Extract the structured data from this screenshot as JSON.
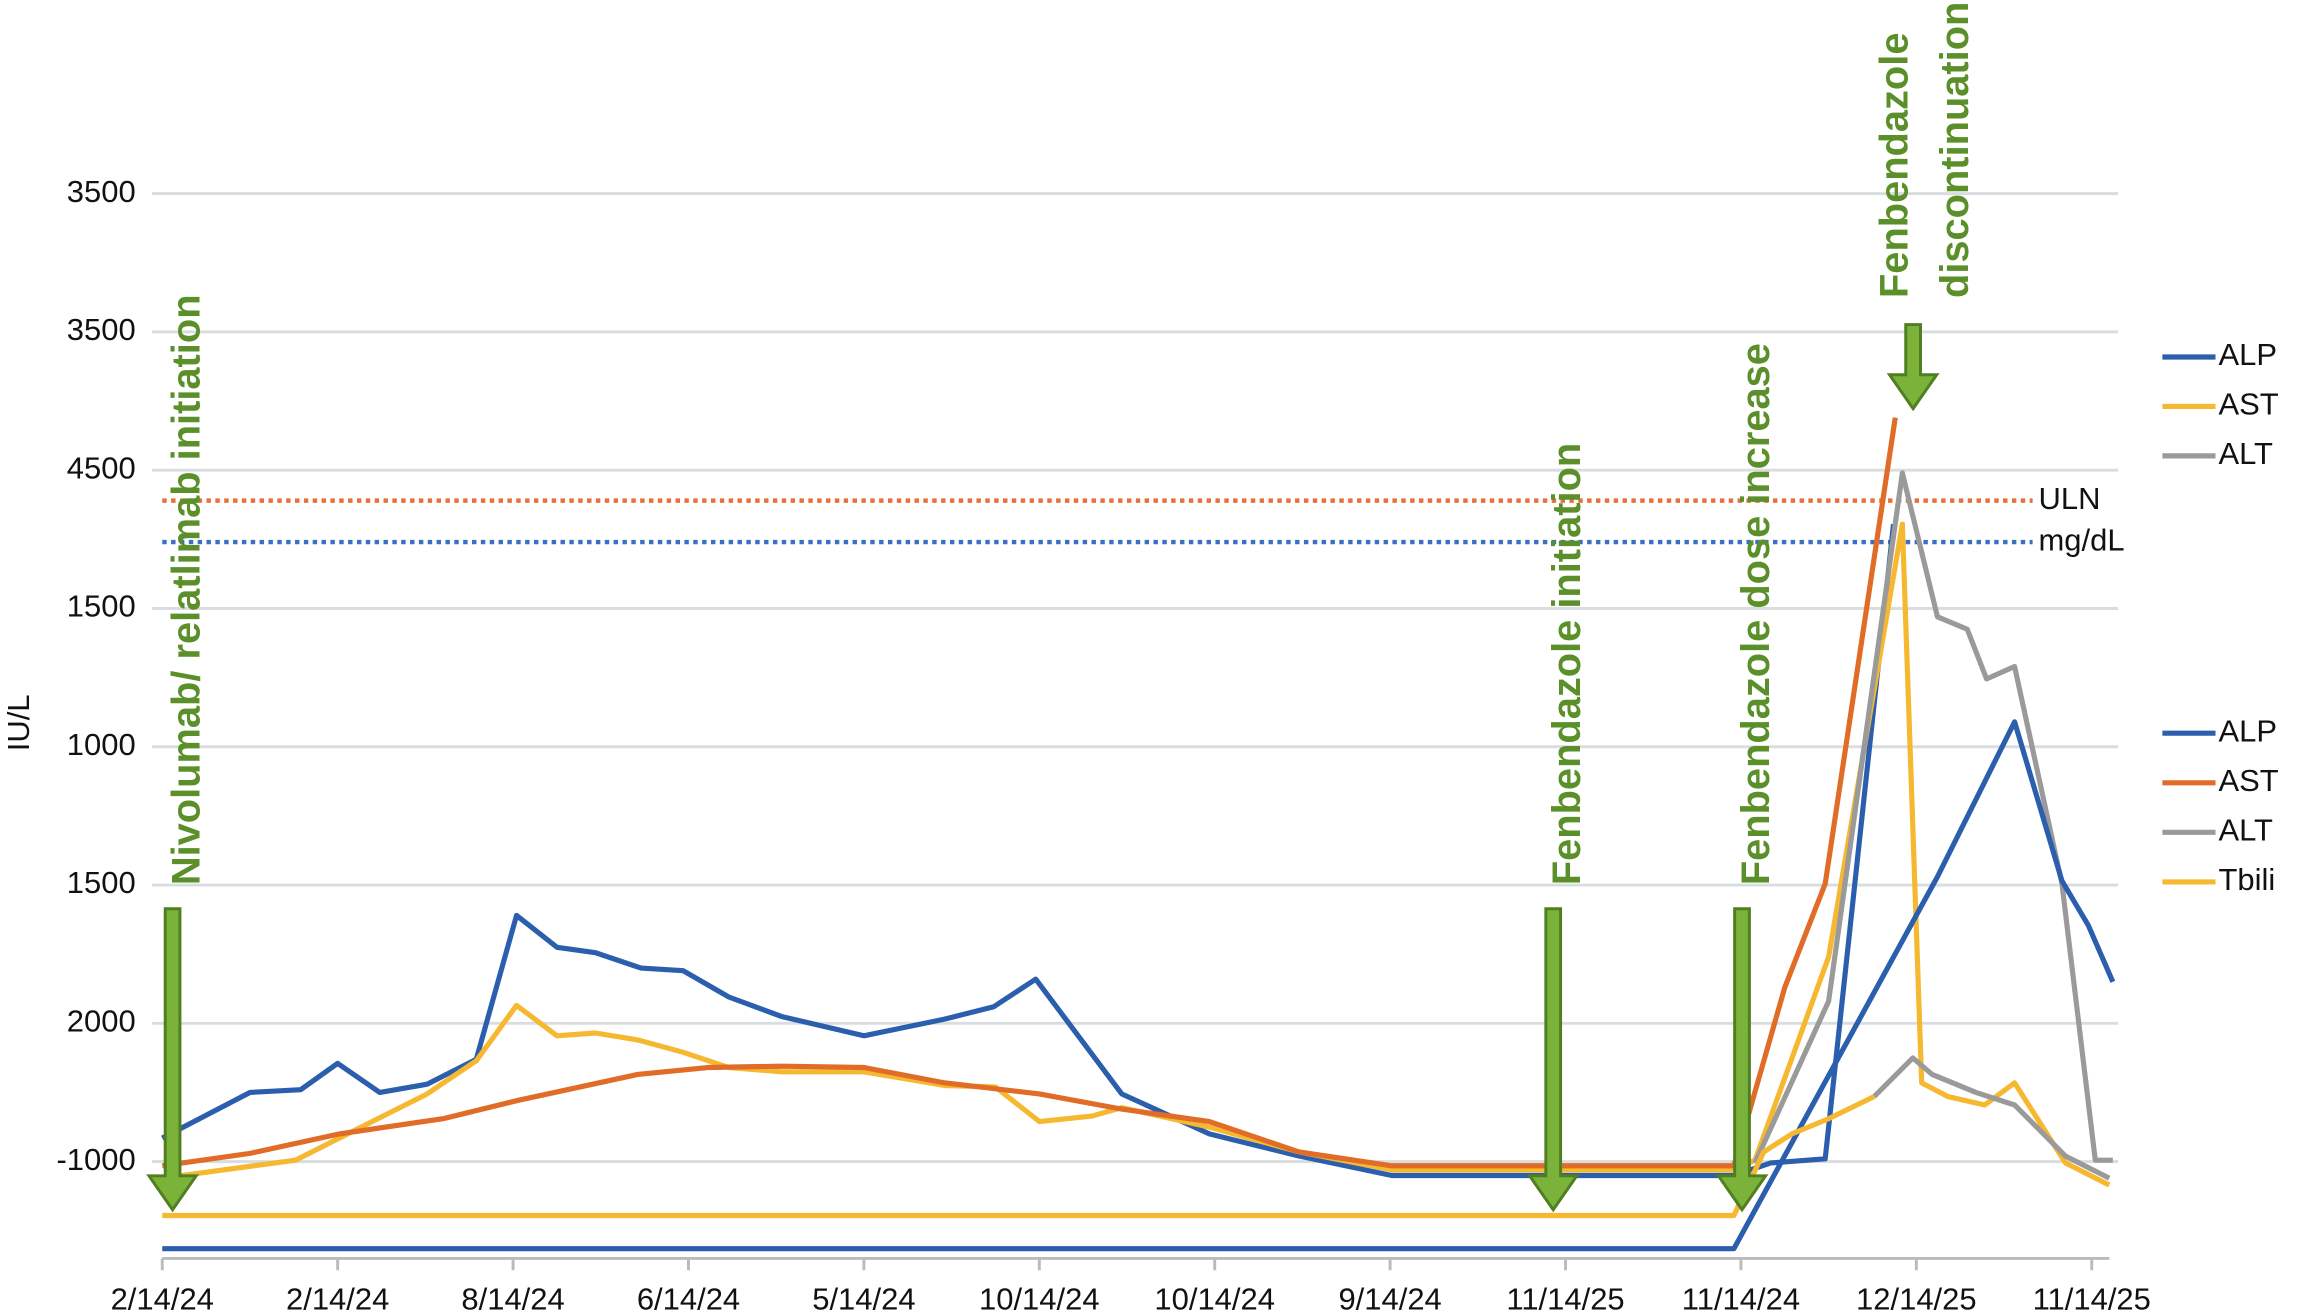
{
  "chart_data": {
    "type": "line",
    "y_label": "IU/L",
    "xlim": [
      0,
      11.1
    ],
    "ylim": [
      -0.7,
      8.4
    ],
    "xticks": [
      {
        "value": 0,
        "label": "2/14/24"
      },
      {
        "value": 1,
        "label": "2/14/24"
      },
      {
        "value": 2,
        "label": "8/14/24"
      },
      {
        "value": 3,
        "label": "6/14/24"
      },
      {
        "value": 4,
        "label": "5/14/24"
      },
      {
        "value": 5,
        "label": "10/14/24"
      },
      {
        "value": 6,
        "label": "10/14/24"
      },
      {
        "value": 7,
        "label": "9/14/24"
      },
      {
        "value": 8,
        "label": "11/14/25"
      },
      {
        "value": 9,
        "label": "11/14/24"
      },
      {
        "value": 10,
        "label": "12/14/25"
      },
      {
        "value": 11,
        "label": "11/14/25"
      }
    ],
    "yticks": [
      {
        "value": 0,
        "label": "-1000"
      },
      {
        "value": 1,
        "label": "2000"
      },
      {
        "value": 2,
        "label": "1500"
      },
      {
        "value": 3,
        "label": "1000"
      },
      {
        "value": 4,
        "label": "1500"
      },
      {
        "value": 5,
        "label": "4500"
      },
      {
        "value": 6,
        "label": "3500"
      },
      {
        "value": 7,
        "label": "3500"
      }
    ],
    "grid": true,
    "reference_lines": [
      {
        "label": "ULN",
        "value": 4.78,
        "color": "#e8703a"
      },
      {
        "label": "mg/dL",
        "value": 4.48,
        "color": "#3a6fc4"
      }
    ],
    "series": [
      {
        "name": "ALP",
        "color": "#2b5fad",
        "x": [
          0,
          0.5,
          0.79,
          1.0,
          1.24,
          1.51,
          1.79,
          2.02,
          2.25,
          2.47,
          2.73,
          2.97,
          3.23,
          3.53,
          4.0,
          4.46,
          4.74,
          4.98,
          5.47,
          5.97,
          6.48,
          7.01,
          8.01,
          8.96,
          9.17,
          9.48,
          9.87
        ],
        "values": [
          0.17,
          0.5,
          0.52,
          0.71,
          0.5,
          0.56,
          0.74,
          1.78,
          1.55,
          1.51,
          1.4,
          1.38,
          1.19,
          1.05,
          0.91,
          1.03,
          1.12,
          1.32,
          0.49,
          0.2,
          0.04,
          -0.1,
          -0.1,
          -0.1,
          -0.01,
          0.02,
          4.61
        ]
      },
      {
        "name": "AST",
        "color": "#f5b830",
        "x": [
          0,
          0.76,
          1.01,
          1.51,
          1.79,
          2.02,
          2.25,
          2.47,
          2.71,
          2.97,
          3.23,
          3.53,
          4.0,
          4.46,
          4.75,
          5.0,
          5.3,
          5.47,
          5.97,
          6.48,
          7.01,
          8.96,
          9.08,
          9.5,
          9.92,
          10.03,
          10.18,
          10.39,
          10.56,
          10.85,
          11.1
        ],
        "values": [
          -0.12,
          0.01,
          0.17,
          0.49,
          0.73,
          1.13,
          0.91,
          0.93,
          0.88,
          0.79,
          0.68,
          0.65,
          0.65,
          0.55,
          0.54,
          0.29,
          0.33,
          0.39,
          0.25,
          0.07,
          -0.06,
          -0.06,
          0.01,
          1.48,
          4.61,
          0.57,
          0.47,
          0.41,
          0.57,
          -0.01,
          -0.17
        ]
      },
      {
        "name": "ALT",
        "color": "#9a9a9a",
        "x": [
          9.08,
          9.5,
          9.92,
          10.12,
          10.29,
          10.4,
          10.56,
          10.83,
          11.02,
          11.12
        ],
        "values": [
          -0.01,
          1.16,
          4.98,
          3.94,
          3.85,
          3.49,
          3.58,
          2.01,
          0.01,
          0.01
        ]
      },
      {
        "name": "ALP",
        "color": "#2b5fad",
        "x": [
          0,
          8.96,
          10.12,
          10.56,
          10.83,
          10.98,
          11.12
        ],
        "values": [
          -0.63,
          -0.63,
          2.06,
          3.18,
          2.03,
          1.71,
          1.3
        ]
      },
      {
        "name": "AST",
        "color": "#e06c27",
        "x": [
          0,
          0.5,
          1.01,
          1.6,
          2.02,
          2.71,
          3.11,
          3.53,
          4.0,
          4.46,
          5.0,
          5.47,
          5.97,
          6.48,
          7.01,
          8.96,
          9.25,
          9.48,
          9.88
        ],
        "values": [
          -0.03,
          0.06,
          0.2,
          0.31,
          0.44,
          0.63,
          0.68,
          0.69,
          0.68,
          0.57,
          0.49,
          0.38,
          0.29,
          0.07,
          -0.03,
          -0.03,
          1.26,
          2.01,
          5.38
        ]
      },
      {
        "name": "ALT",
        "color": "#9a9a9a",
        "x": [
          9.76,
          9.98,
          10.09,
          10.34,
          10.56,
          10.85,
          11.1
        ],
        "values": [
          0.47,
          0.75,
          0.63,
          0.5,
          0.41,
          0.04,
          -0.12
        ]
      },
      {
        "name": "Tbili",
        "color": "#f5b830",
        "x": [
          0,
          8.96,
          9.13,
          9.29,
          9.5,
          9.76
        ],
        "values": [
          -0.39,
          -0.39,
          0.07,
          0.2,
          0.31,
          0.47
        ]
      }
    ],
    "annotations": [
      "Nivolumab/ relatlimab initiation",
      "Fenbendazole initiation",
      "Fenbendazole dose increase",
      "Fenbendazole",
      "discontinuation"
    ]
  }
}
